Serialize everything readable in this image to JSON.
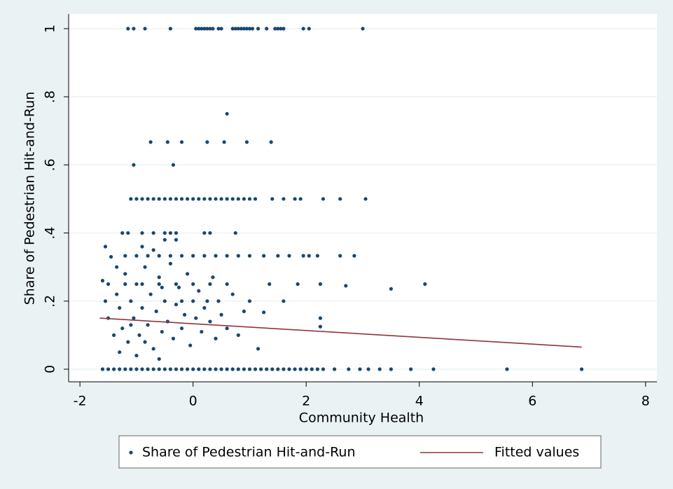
{
  "chart_data": {
    "type": "scatter",
    "x_label": "Community Health",
    "y_label": "Share of Pedestrian Hit-and-Run",
    "xlim": [
      -2.2,
      8.2
    ],
    "ylim": [
      -0.037,
      1.043
    ],
    "xticks": [
      -2,
      0,
      2,
      4,
      6,
      8
    ],
    "yticks": [
      0,
      {
        "value": 0.2,
        "label": ".2"
      },
      {
        "value": 0.4,
        "label": ".4"
      },
      {
        "value": 0.6,
        "label": ".6"
      },
      {
        "value": 0.8,
        "label": ".8"
      },
      1
    ],
    "grid": true,
    "legend": "bottom",
    "series": [
      {
        "name": "Share of Pedestrian Hit-and-Run",
        "type": "scatter",
        "color": "#1a476f",
        "x": [
          -1.15,
          -1.05,
          -0.85,
          -0.4,
          0.05,
          0.1,
          0.15,
          0.2,
          0.25,
          0.3,
          0.35,
          0.45,
          0.5,
          0.7,
          0.75,
          0.8,
          0.85,
          0.9,
          0.95,
          1.0,
          1.05,
          1.15,
          1.3,
          1.45,
          1.5,
          1.55,
          1.6,
          1.95,
          2.05,
          3.0,
          -1.6,
          -1.5,
          -1.4,
          -1.3,
          -1.2,
          -1.1,
          -1.0,
          -0.9,
          -0.8,
          -0.7,
          -0.6,
          -0.5,
          -0.4,
          -0.3,
          -0.2,
          -0.1,
          0,
          0.1,
          0.2,
          0.3,
          0.4,
          0.5,
          0.6,
          0.7,
          0.8,
          0.9,
          1.0,
          1.1,
          1.2,
          1.3,
          1.4,
          1.5,
          1.6,
          1.7,
          1.8,
          1.9,
          2.0,
          2.1,
          2.2,
          2.3,
          2.5,
          2.75,
          2.95,
          3.1,
          3.3,
          3.5,
          3.85,
          4.25,
          5.55,
          6.87,
          0.6,
          -0.75,
          -0.45,
          -0.2,
          0.25,
          0.55,
          0.95,
          1.38,
          -1.05,
          -0.35,
          -1.1,
          -1.0,
          -0.9,
          -0.8,
          -0.7,
          -0.6,
          -0.5,
          -0.4,
          -0.3,
          -0.2,
          -0.1,
          0,
          0.1,
          0.2,
          0.3,
          0.4,
          0.5,
          0.6,
          0.7,
          0.8,
          0.9,
          1.0,
          1.1,
          1.4,
          1.6,
          1.8,
          1.9,
          2.3,
          2.6,
          3.05,
          -1.25,
          -1.15,
          -0.9,
          -0.7,
          -0.5,
          -0.4,
          -0.3,
          0.2,
          0.3,
          0.75,
          -1.2,
          -1.0,
          -0.8,
          -0.6,
          -0.4,
          -0.2,
          0,
          0.2,
          0.4,
          0.6,
          0.8,
          1.0,
          1.25,
          1.5,
          1.95,
          2.05,
          2.2,
          2.6,
          2.85,
          1.7,
          -1.5,
          -1.2,
          -0.9,
          -0.6,
          -0.3,
          0,
          0.3,
          0.6,
          1.35,
          1.85,
          2.25,
          2.7,
          4.1,
          3.5,
          1.0,
          1.6,
          2.25,
          2.25,
          1.25,
          1.15,
          -1.6,
          -1.55,
          -1.5,
          -1.45,
          -1.4,
          -1.35,
          -1.3,
          -1.25,
          -1.2,
          -1.15,
          -1.1,
          -1.05,
          -1.0,
          -0.95,
          -0.9,
          -0.85,
          -0.8,
          -0.75,
          -0.7,
          -0.65,
          -0.6,
          -0.55,
          -0.5,
          -0.45,
          -0.4,
          -0.35,
          -0.3,
          -0.25,
          -0.2,
          -0.15,
          -0.1,
          -0.05,
          0.0,
          0.05,
          0.1,
          0.15,
          0.2,
          0.3,
          0.35,
          0.4,
          0.45,
          0.5,
          0.6,
          0.7,
          0.8,
          0.9,
          -1.3,
          -1.0,
          -0.6,
          -0.9,
          -0.7,
          -1.55,
          -1.35,
          -0.5,
          -0.3,
          -1.1,
          -0.85,
          -0.55,
          -0.2,
          0.25
        ],
        "values": [
          1,
          1,
          1,
          1,
          1,
          1,
          1,
          1,
          1,
          1,
          1,
          1,
          1,
          1,
          1,
          1,
          1,
          1,
          1,
          1,
          1,
          1,
          1,
          1,
          1,
          1,
          1,
          1,
          1,
          1,
          0,
          0,
          0,
          0,
          0,
          0,
          0,
          0,
          0,
          0,
          0,
          0,
          0,
          0,
          0,
          0,
          0,
          0,
          0,
          0,
          0,
          0,
          0,
          0,
          0,
          0,
          0,
          0,
          0,
          0,
          0,
          0,
          0,
          0,
          0,
          0,
          0,
          0,
          0,
          0,
          0,
          0,
          0,
          0,
          0,
          0,
          0,
          0,
          0,
          0,
          0.75,
          0.667,
          0.667,
          0.667,
          0.667,
          0.667,
          0.667,
          0.667,
          0.6,
          0.6,
          0.5,
          0.5,
          0.5,
          0.5,
          0.5,
          0.5,
          0.5,
          0.5,
          0.5,
          0.5,
          0.5,
          0.5,
          0.5,
          0.5,
          0.5,
          0.5,
          0.5,
          0.5,
          0.5,
          0.5,
          0.5,
          0.5,
          0.5,
          0.5,
          0.5,
          0.5,
          0.5,
          0.5,
          0.5,
          0.5,
          0.4,
          0.4,
          0.4,
          0.4,
          0.4,
          0.4,
          0.4,
          0.4,
          0.4,
          0.4,
          0.333,
          0.333,
          0.333,
          0.333,
          0.333,
          0.333,
          0.333,
          0.333,
          0.333,
          0.333,
          0.333,
          0.333,
          0.333,
          0.333,
          0.333,
          0.333,
          0.333,
          0.333,
          0.333,
          0.333,
          0.25,
          0.25,
          0.25,
          0.25,
          0.25,
          0.25,
          0.25,
          0.25,
          0.25,
          0.25,
          0.25,
          0.245,
          0.25,
          0.236,
          0.2,
          0.2,
          0.15,
          0.125,
          0.167,
          0.06,
          0.26,
          0.2,
          0.15,
          0.33,
          0.1,
          0.22,
          0.18,
          0.12,
          0.28,
          0.08,
          0.2,
          0.15,
          0.25,
          0.1,
          0.18,
          0.3,
          0.13,
          0.22,
          0.06,
          0.17,
          0.27,
          0.11,
          0.2,
          0.14,
          0.31,
          0.09,
          0.19,
          0.24,
          0.12,
          0.16,
          0.28,
          0.07,
          0.2,
          0.15,
          0.23,
          0.11,
          0.18,
          0.14,
          0.27,
          0.09,
          0.2,
          0.16,
          0.12,
          0.22,
          0.1,
          0.17,
          0.05,
          0.04,
          0.03,
          0.36,
          0.35,
          0.36,
          0.3,
          0.38,
          0.38,
          0.13,
          0.08,
          0.24,
          0.2,
          0.2
        ]
      },
      {
        "name": "Fitted values",
        "type": "line",
        "color": "#90353b",
        "x": [
          -1.65,
          6.87
        ],
        "values": [
          0.15,
          0.065
        ]
      }
    ]
  }
}
